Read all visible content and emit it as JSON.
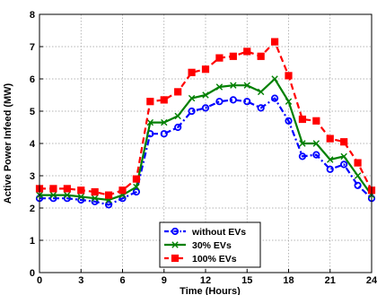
{
  "chart_data": {
    "type": "line",
    "title": "",
    "xlabel": "Time (Hours)",
    "ylabel": "Active Power Infeed (MW)",
    "xlim": [
      0,
      24
    ],
    "ylim": [
      0,
      8
    ],
    "xticks": [
      0,
      3,
      6,
      9,
      12,
      15,
      18,
      21,
      24
    ],
    "yticks": [
      0,
      1,
      2,
      3,
      4,
      5,
      6,
      7,
      8
    ],
    "grid": true,
    "legend_position": "bottom-center",
    "x": [
      0,
      1,
      2,
      3,
      4,
      5,
      6,
      7,
      8,
      9,
      10,
      11,
      12,
      13,
      14,
      15,
      16,
      17,
      18,
      19,
      20,
      21,
      22,
      23,
      24
    ],
    "series": [
      {
        "name": "without EVs",
        "color": "#0000ff",
        "marker": "circle",
        "line_style": "dash-dot",
        "values": [
          2.3,
          2.3,
          2.3,
          2.25,
          2.2,
          2.1,
          2.3,
          2.5,
          4.3,
          4.3,
          4.5,
          5.0,
          5.1,
          5.3,
          5.35,
          5.3,
          5.1,
          5.4,
          4.7,
          3.6,
          3.65,
          3.2,
          3.35,
          2.7,
          2.3
        ]
      },
      {
        "name": "30% EVs",
        "color": "#008000",
        "marker": "x",
        "line_style": "solid",
        "values": [
          2.4,
          2.4,
          2.4,
          2.35,
          2.3,
          2.25,
          2.4,
          2.65,
          4.65,
          4.65,
          4.85,
          5.4,
          5.5,
          5.75,
          5.8,
          5.8,
          5.6,
          6.0,
          5.3,
          4.0,
          4.0,
          3.5,
          3.6,
          3.0,
          2.4
        ]
      },
      {
        "name": "100% EVs",
        "color": "#ff0000",
        "marker": "square",
        "line_style": "dashed",
        "values": [
          2.6,
          2.6,
          2.6,
          2.55,
          2.5,
          2.4,
          2.55,
          2.9,
          5.3,
          5.35,
          5.6,
          6.2,
          6.3,
          6.65,
          6.7,
          6.85,
          6.7,
          7.15,
          6.1,
          4.75,
          4.7,
          4.15,
          4.05,
          3.4,
          2.55
        ]
      }
    ]
  }
}
